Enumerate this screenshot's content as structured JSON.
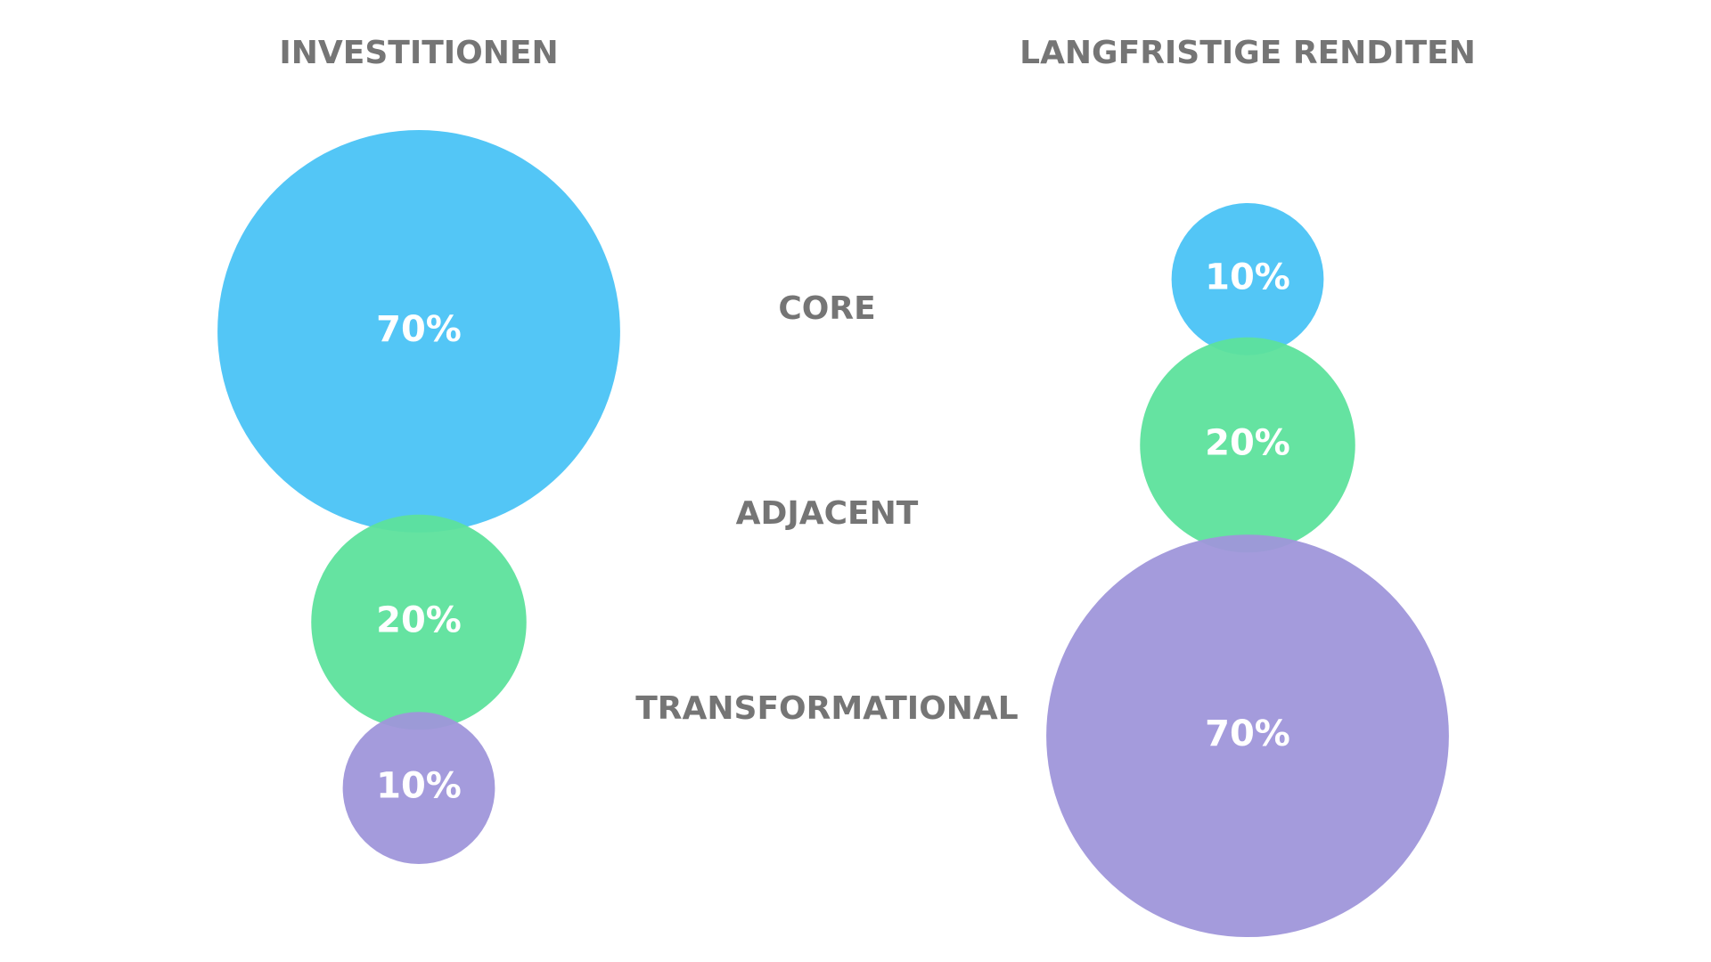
{
  "chart_data": {
    "type": "bubble",
    "categories": [
      "CORE",
      "ADJACENT",
      "TRANSFORMATIONAL"
    ],
    "colors": [
      "#4ac3f5",
      "#5de29c",
      "#9f96da"
    ],
    "series": [
      {
        "name": "INVESTITIONEN",
        "values": [
          70,
          20,
          10
        ],
        "value_labels": [
          "70%",
          "20%",
          "10%"
        ]
      },
      {
        "name": "LANGFRISTIGE RENDITEN",
        "values": [
          10,
          20,
          70
        ],
        "value_labels": [
          "10%",
          "20%",
          "70%"
        ]
      }
    ]
  }
}
